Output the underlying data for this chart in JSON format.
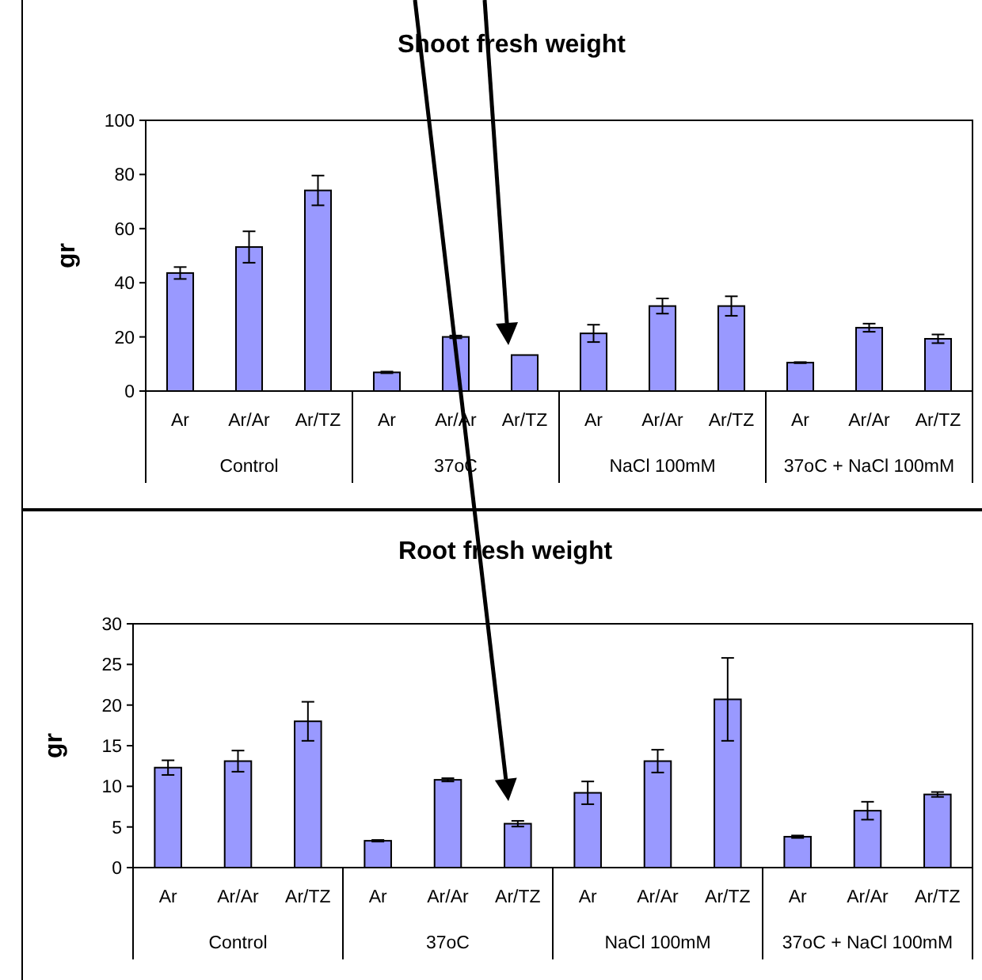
{
  "chart_data": [
    {
      "type": "bar",
      "title": "Shoot fresh weight",
      "ylabel": "gr",
      "categories": [
        "Ar",
        "Ar/Ar",
        "Ar/TZ",
        "Ar",
        "Ar/Ar",
        "Ar/TZ",
        "Ar",
        "Ar/Ar",
        "Ar/TZ",
        "Ar",
        "Ar/Ar",
        "Ar/TZ"
      ],
      "annotations": [
        "Control",
        "37oC",
        "NaCl 100mM",
        "37oC + NaCl 100mM"
      ],
      "values": [
        43.6,
        53.2,
        74.1,
        6.9,
        20,
        13.3,
        21.3,
        31.4,
        31.4,
        10.5,
        23.4,
        19.3
      ],
      "errors": [
        2.2,
        5.8,
        5.5,
        0.3,
        0.5,
        null,
        3.2,
        2.8,
        3.6,
        0.2,
        1.5,
        1.6
      ],
      "color": "#9999ff",
      "ylim": [
        0,
        100
      ],
      "yticks": [
        0,
        20,
        40,
        60,
        80,
        100
      ],
      "grid": false
    },
    {
      "type": "bar",
      "title": "Root fresh weight",
      "ylabel": "gr",
      "categories": [
        "Ar",
        "Ar/Ar",
        "Ar/TZ",
        "Ar",
        "Ar/Ar",
        "Ar/TZ",
        "Ar",
        "Ar/Ar",
        "Ar/TZ",
        "Ar",
        "Ar/Ar",
        "Ar/TZ"
      ],
      "annotations": [
        "Control",
        "37oC",
        "NaCl 100mM",
        "37oC + NaCl 100mM"
      ],
      "values": [
        12.3,
        13.1,
        18.0,
        3.3,
        10.8,
        5.4,
        9.2,
        13.1,
        20.7,
        3.8,
        7.0,
        9.0
      ],
      "errors": [
        0.9,
        1.3,
        2.4,
        0.1,
        0.2,
        0.35,
        1.4,
        1.4,
        5.1,
        0.15,
        1.1,
        0.3
      ],
      "color": "#9999ff",
      "ylim": [
        0,
        30
      ],
      "yticks": [
        0,
        5,
        10,
        15,
        20,
        25,
        30
      ],
      "grid": false
    }
  ]
}
